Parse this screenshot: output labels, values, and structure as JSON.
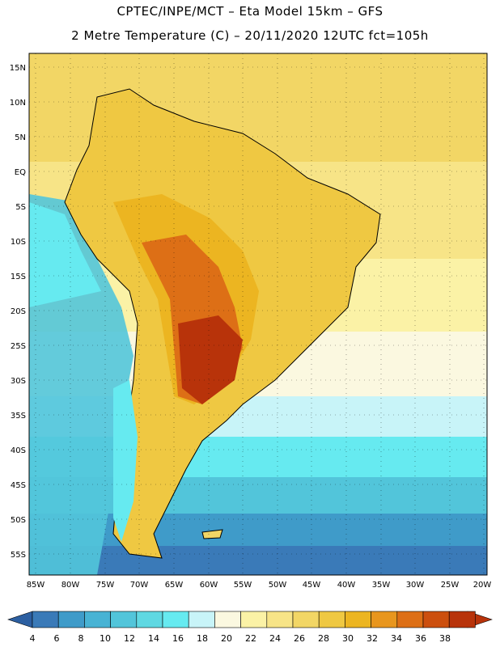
{
  "header": {
    "line1": "CPTEC/INPE/MCT –  Eta Model 15km – GFS",
    "line2": "2 Metre Temperature (C) – 20/11/2020 12UTC fct=105h"
  },
  "axes": {
    "lat_labels": [
      "15N",
      "10N",
      "5N",
      "EQ",
      "5S",
      "10S",
      "15S",
      "20S",
      "25S",
      "30S",
      "35S",
      "40S",
      "45S",
      "50S",
      "55S"
    ],
    "lon_labels": [
      "85W",
      "80W",
      "75W",
      "70W",
      "65W",
      "60W",
      "55W",
      "50W",
      "45W",
      "40W",
      "35W",
      "30W",
      "25W",
      "20W"
    ]
  },
  "colorbar": {
    "labels": [
      "4",
      "6",
      "8",
      "10",
      "12",
      "14",
      "16",
      "18",
      "20",
      "22",
      "24",
      "26",
      "28",
      "30",
      "32",
      "34",
      "36",
      "38"
    ],
    "colors": [
      "#2c5fa1",
      "#3a7ab8",
      "#3f9bc9",
      "#48b3d4",
      "#52c5da",
      "#5fd8e2",
      "#66eaf0",
      "#c8f4f8",
      "#fbf8e0",
      "#fbf2a6",
      "#f7e487",
      "#f2d665",
      "#efc842",
      "#ecb521",
      "#e8961e",
      "#dd6f16",
      "#cc4f0e",
      "#b8330a"
    ]
  }
}
